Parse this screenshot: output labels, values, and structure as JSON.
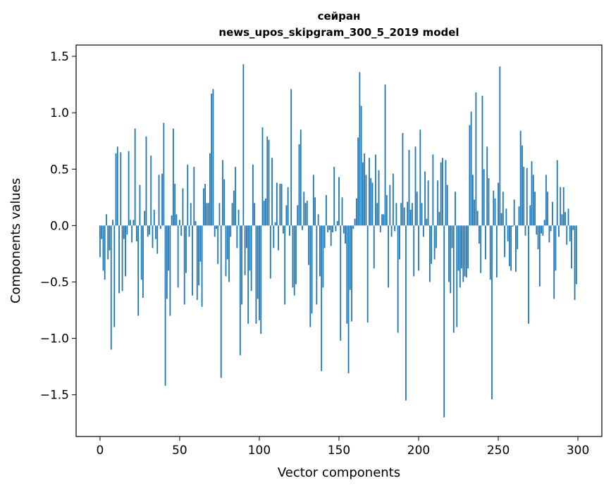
{
  "chart_data": {
    "type": "bar",
    "title_line1": "сейран",
    "title_line2": "news_upos_skipgram_300_5_2019 model",
    "xlabel": "Vector components",
    "ylabel": "Components values",
    "xlim": [
      -15,
      315
    ],
    "ylim": [
      -1.87,
      1.6
    ],
    "xticks": [
      0,
      50,
      100,
      150,
      200,
      250,
      300
    ],
    "xtick_labels": [
      "0",
      "50",
      "100",
      "150",
      "200",
      "250",
      "300"
    ],
    "yticks": [
      -1.5,
      -1.0,
      -0.5,
      0.0,
      0.5,
      1.0,
      1.5
    ],
    "ytick_labels": [
      "−1.5",
      "−1.0",
      "−0.5",
      "0.0",
      "0.5",
      "1.0",
      "1.5"
    ],
    "grid": false,
    "bar_color": "#1f77b4",
    "values": [
      -0.28,
      -0.12,
      -0.4,
      -0.48,
      0.1,
      -0.3,
      -0.22,
      -1.1,
      0.05,
      -0.9,
      0.64,
      0.7,
      -0.6,
      0.65,
      -0.58,
      -0.12,
      -0.45,
      -0.08,
      0.66,
      0.05,
      -0.15,
      0.05,
      0.86,
      -0.14,
      -0.8,
      0.36,
      -0.48,
      -0.64,
      0.13,
      0.79,
      -0.1,
      -0.08,
      0.62,
      -0.2,
      0.14,
      -0.12,
      -0.25,
      0.45,
      -0.03,
      0.46,
      0.91,
      -1.42,
      -0.65,
      -0.4,
      -0.8,
      0.09,
      0.86,
      0.37,
      0.1,
      -0.55,
      0.05,
      -0.09,
      0.33,
      -0.7,
      -0.42,
      0.54,
      -0.1,
      0.2,
      -0.62,
      0.52,
      0.04,
      -0.66,
      -0.53,
      -0.32,
      -0.72,
      0.33,
      0.37,
      0.2,
      0.2,
      0.64,
      1.17,
      1.21,
      -0.1,
      -0.03,
      -0.34,
      0.2,
      -1.35,
      0.58,
      0.41,
      -0.45,
      -0.3,
      -0.5,
      -0.1,
      0.2,
      0.31,
      0.52,
      -0.2,
      0.14,
      -1.15,
      -0.7,
      1.43,
      -0.44,
      -0.2,
      -0.87,
      -0.4,
      -0.58,
      0.54,
      0.2,
      -0.87,
      -0.65,
      -0.84,
      -0.96,
      0.87,
      0.22,
      0.24,
      0.79,
      0.76,
      -0.47,
      0.6,
      -0.2,
      0.03,
      0.38,
      -0.22,
      0.37,
      0.37,
      -0.07,
      -0.7,
      0.18,
      0.34,
      -0.09,
      1.21,
      -0.55,
      -0.62,
      -0.52,
      0.18,
      0.72,
      0.85,
      -0.04,
      0.3,
      0.2,
      0.22,
      -0.35,
      -0.9,
      -0.78,
      0.45,
      0.25,
      -0.7,
      0.1,
      -0.45,
      -1.29,
      -0.55,
      -0.2,
      0.27,
      -0.06,
      -0.04,
      -0.18,
      -0.06,
      0.52,
      -0.05,
      0.04,
      0.43,
      -1.02,
      0.25,
      -0.07,
      -0.16,
      -0.87,
      -1.31,
      -0.57,
      -0.85,
      -0.03,
      0.06,
      0.24,
      0.78,
      1.36,
      1.06,
      0.56,
      0.64,
      0.45,
      -0.86,
      0.6,
      0.42,
      0.38,
      -0.38,
      0.63,
      0.2,
      0.49,
      -0.06,
      0.1,
      0.1,
      1.25,
      0.27,
      -0.55,
      0.36,
      -0.1,
      0.46,
      -0.05,
      0.2,
      -0.95,
      -0.3,
      0.2,
      0.82,
      0.16,
      -1.55,
      0.21,
      0.67,
      0.14,
      0.2,
      -0.45,
      0.7,
      0.3,
      -0.4,
      0.85,
      0.2,
      -0.1,
      0.48,
      0.06,
      0.4,
      -0.5,
      -0.34,
      0.63,
      -0.3,
      -0.2,
      0.4,
      0.12,
      0.56,
      0.6,
      -1.7,
      0.58,
      0.36,
      -0.5,
      -0.6,
      -0.2,
      -0.95,
      0.3,
      -0.9,
      -0.4,
      -0.55,
      -0.38,
      -0.5,
      -0.45,
      -0.46,
      -0.38,
      0.89,
      1.01,
      0.45,
      0.23,
      1.18,
      0.13,
      -0.16,
      -0.42,
      1.15,
      0.5,
      -0.3,
      0.7,
      0.42,
      -0.48,
      -1.54,
      0.31,
      0.24,
      -0.46,
      0.38,
      1.41,
      0.11,
      0.3,
      -0.28,
      0.15,
      -0.14,
      -0.36,
      -0.4,
      -0.01,
      0.23,
      -0.41,
      -0.21,
      0.17,
      0.84,
      0.71,
      0.52,
      -0.09,
      0.51,
      -0.87,
      0.18,
      0.57,
      0.45,
      0.3,
      -0.08,
      -0.21,
      -0.54,
      -0.07,
      -0.09,
      0.05,
      0.45,
      0.3,
      -0.15,
      -0.05,
      0.21,
      -0.65,
      -0.4,
      0.58,
      -0.1,
      0.34,
      0.1,
      0.34,
      0.12,
      -0.17,
      0.15,
      -0.14,
      -0.38,
      -0.04,
      -0.66,
      -0.52
    ]
  }
}
